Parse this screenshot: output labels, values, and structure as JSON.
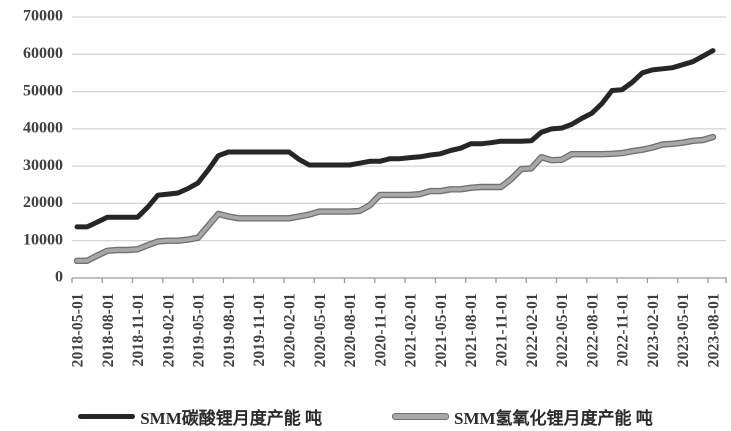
{
  "chart_data": {
    "type": "line",
    "title": "",
    "grid": true,
    "legend_position": "bottom",
    "grid_color": "#c9c9c9",
    "axis_color": "#9b9b9b",
    "text_color": "#3f3f3f",
    "ylim": [
      0,
      70000
    ],
    "y_ticks": [
      0,
      10000,
      20000,
      30000,
      40000,
      50000,
      60000,
      70000
    ],
    "tick_every_months": 3,
    "x_tick_labels": [
      "2018-05-01",
      "2018-08-01",
      "2018-11-01",
      "2019-02-01",
      "2019-05-01",
      "2019-08-01",
      "2019-11-01",
      "2020-02-01",
      "2020-05-01",
      "2020-08-01",
      "2020-11-01",
      "2021-02-01",
      "2021-05-01",
      "2021-08-01",
      "2021-11-01",
      "2022-02-01",
      "2022-05-01",
      "2022-08-01",
      "2022-11-01",
      "2023-02-01",
      "2023-05-01",
      "2023-08-01"
    ],
    "x": [
      "2018-05-01",
      "2018-06-01",
      "2018-07-01",
      "2018-08-01",
      "2018-09-01",
      "2018-10-01",
      "2018-11-01",
      "2018-12-01",
      "2019-01-01",
      "2019-02-01",
      "2019-03-01",
      "2019-04-01",
      "2019-05-01",
      "2019-06-01",
      "2019-07-01",
      "2019-08-01",
      "2019-09-01",
      "2019-10-01",
      "2019-11-01",
      "2019-12-01",
      "2020-01-01",
      "2020-02-01",
      "2020-03-01",
      "2020-04-01",
      "2020-05-01",
      "2020-06-01",
      "2020-07-01",
      "2020-08-01",
      "2020-09-01",
      "2020-10-01",
      "2020-11-01",
      "2020-12-01",
      "2021-01-01",
      "2021-02-01",
      "2021-03-01",
      "2021-04-01",
      "2021-05-01",
      "2021-06-01",
      "2021-07-01",
      "2021-08-01",
      "2021-09-01",
      "2021-10-01",
      "2021-11-01",
      "2021-12-01",
      "2022-01-01",
      "2022-02-01",
      "2022-03-01",
      "2022-04-01",
      "2022-05-01",
      "2022-06-01",
      "2022-07-01",
      "2022-08-01",
      "2022-09-01",
      "2022-10-01",
      "2022-11-01",
      "2022-12-01",
      "2023-01-01",
      "2023-02-01",
      "2023-03-01",
      "2023-04-01",
      "2023-05-01",
      "2023-06-01",
      "2023-07-01",
      "2023-08-01"
    ],
    "series": [
      {
        "name": "SMM碳酸锂月度产能 吨",
        "color": "#262626",
        "values": [
          13700,
          13700,
          15000,
          16300,
          16300,
          16300,
          16300,
          19000,
          22200,
          22500,
          22800,
          24000,
          25500,
          29000,
          32800,
          33800,
          33800,
          33800,
          33800,
          33800,
          33800,
          33800,
          31800,
          30300,
          30300,
          30300,
          30300,
          30300,
          30800,
          31300,
          31300,
          32000,
          32000,
          32300,
          32500,
          33000,
          33300,
          34200,
          34800,
          36000,
          36000,
          36300,
          36700,
          36700,
          36700,
          36800,
          39100,
          40000,
          40200,
          41200,
          42800,
          44200,
          46800,
          50300,
          50500,
          52500,
          55000,
          55800,
          56100,
          56400,
          57200,
          58000,
          59500,
          61000
        ]
      },
      {
        "name": "SMM氢氧化锂月度产能 吨",
        "color": "#a8a8a8",
        "edge_color": "#6f6f6f",
        "values": [
          4600,
          4600,
          6000,
          7300,
          7500,
          7500,
          7700,
          8800,
          9800,
          10000,
          10000,
          10300,
          10800,
          14000,
          17200,
          16500,
          16000,
          16000,
          16000,
          16000,
          16000,
          16000,
          16500,
          17000,
          17800,
          17800,
          17800,
          17800,
          18000,
          19500,
          22300,
          22300,
          22300,
          22300,
          22500,
          23300,
          23300,
          23800,
          23800,
          24200,
          24400,
          24400,
          24400,
          26500,
          29200,
          29400,
          32400,
          31600,
          31700,
          33200,
          33200,
          33200,
          33200,
          33300,
          33500,
          34000,
          34400,
          35000,
          35800,
          36000,
          36300,
          36800,
          37000,
          37800
        ]
      }
    ]
  }
}
